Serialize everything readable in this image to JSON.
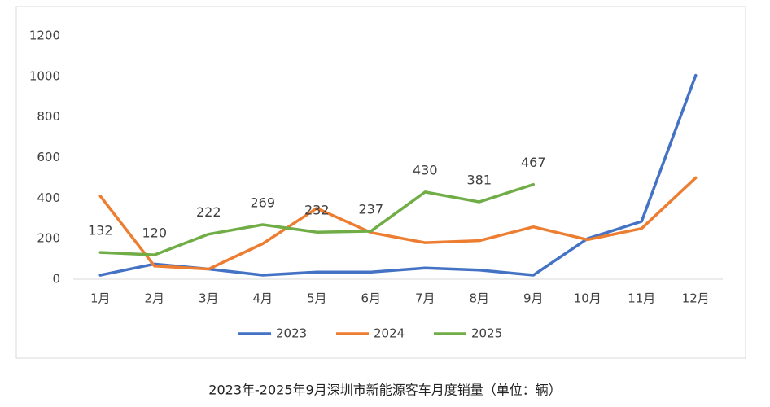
{
  "chart_data": {
    "type": "line",
    "title": "2023年-2025年9月深圳市新能源客车月度销量（单位：辆）",
    "categories": [
      "1月",
      "2月",
      "3月",
      "4月",
      "5月",
      "6月",
      "7月",
      "8月",
      "9月",
      "10月",
      "11月",
      "12月"
    ],
    "series": [
      {
        "name": "2023",
        "color": "#4472c4",
        "values": [
          20,
          75,
          50,
          20,
          35,
          35,
          55,
          45,
          20,
          200,
          285,
          1005
        ]
      },
      {
        "name": "2024",
        "color": "#ed7d31",
        "values": [
          410,
          65,
          50,
          175,
          350,
          230,
          180,
          190,
          258,
          195,
          250,
          500
        ]
      },
      {
        "name": "2025",
        "color": "#70ad47",
        "values": [
          132,
          120,
          222,
          269,
          232,
          237,
          430,
          381,
          467,
          null,
          null,
          null
        ]
      }
    ],
    "data_label_series": 2,
    "ylim": [
      0,
      1200
    ],
    "yticks": [
      0,
      200,
      400,
      600,
      800,
      1000,
      1200
    ],
    "grid": false,
    "legend": "bottom"
  }
}
